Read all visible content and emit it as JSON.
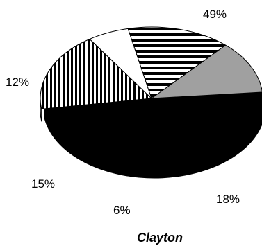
{
  "chart_data": {
    "type": "pie",
    "title": "Clayton",
    "style": "3d-exploded",
    "slices": [
      {
        "label": "49%",
        "value": 49,
        "fill": "solid",
        "color": "#000000"
      },
      {
        "label": "18%",
        "value": 18,
        "fill": "vertical-stripes",
        "color": "#000000"
      },
      {
        "label": "6%",
        "value": 6,
        "fill": "solid",
        "color": "#ffffff"
      },
      {
        "label": "15%",
        "value": 15,
        "fill": "horizontal-stripes",
        "color": "#000000"
      },
      {
        "label": "12%",
        "value": 12,
        "fill": "solid",
        "color": "#a0a0a0"
      }
    ]
  }
}
